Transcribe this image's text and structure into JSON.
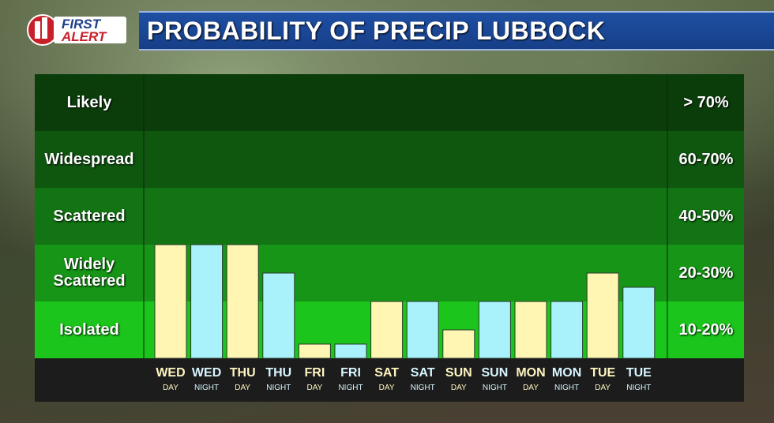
{
  "logo": {
    "line1": "FIRST",
    "line2": "ALERT"
  },
  "title": "PROBABILITY OF PRECIP LUBBOCK",
  "colors": {
    "day": "#fff6b3",
    "night": "#aaf2fb",
    "title_bar": "#1e4fa3"
  },
  "bands": [
    {
      "label": "Likely",
      "range": "> 70%",
      "color": "#0b3d0b"
    },
    {
      "label": "Widespread",
      "range": "60-70%",
      "color": "#0f560f"
    },
    {
      "label": "Scattered",
      "range": "40-50%",
      "color": "#127412"
    },
    {
      "label": "Widely Scattered",
      "range": "20-30%",
      "color": "#169516"
    },
    {
      "label": "Isolated",
      "range": "10-20%",
      "color": "#1bc51b"
    }
  ],
  "chart_data": {
    "type": "bar",
    "title": "PROBABILITY OF PRECIP LUBBOCK",
    "categories": [
      "WED DAY",
      "WED NIGHT",
      "THU DAY",
      "THU NIGHT",
      "FRI DAY",
      "FRI NIGHT",
      "SAT DAY",
      "SAT NIGHT",
      "SUN DAY",
      "SUN NIGHT",
      "MON DAY",
      "MON NIGHT",
      "TUE DAY",
      "TUE NIGHT"
    ],
    "x_days": [
      "WED",
      "WED",
      "THU",
      "THU",
      "FRI",
      "FRI",
      "SAT",
      "SAT",
      "SUN",
      "SUN",
      "MON",
      "MON",
      "TUE",
      "TUE"
    ],
    "x_periods": [
      "DAY",
      "NIGHT",
      "DAY",
      "NIGHT",
      "DAY",
      "NIGHT",
      "DAY",
      "NIGHT",
      "DAY",
      "NIGHT",
      "DAY",
      "NIGHT",
      "DAY",
      "NIGHT"
    ],
    "values": [
      2.0,
      2.0,
      2.0,
      1.5,
      0.25,
      0.25,
      1.0,
      1.0,
      0.5,
      1.0,
      1.0,
      1.0,
      1.5,
      1.25
    ],
    "ylim": [
      0,
      5
    ],
    "yticks": [
      "Isolated",
      "Widely Scattered",
      "Scattered",
      "Widespread",
      "Likely"
    ]
  }
}
